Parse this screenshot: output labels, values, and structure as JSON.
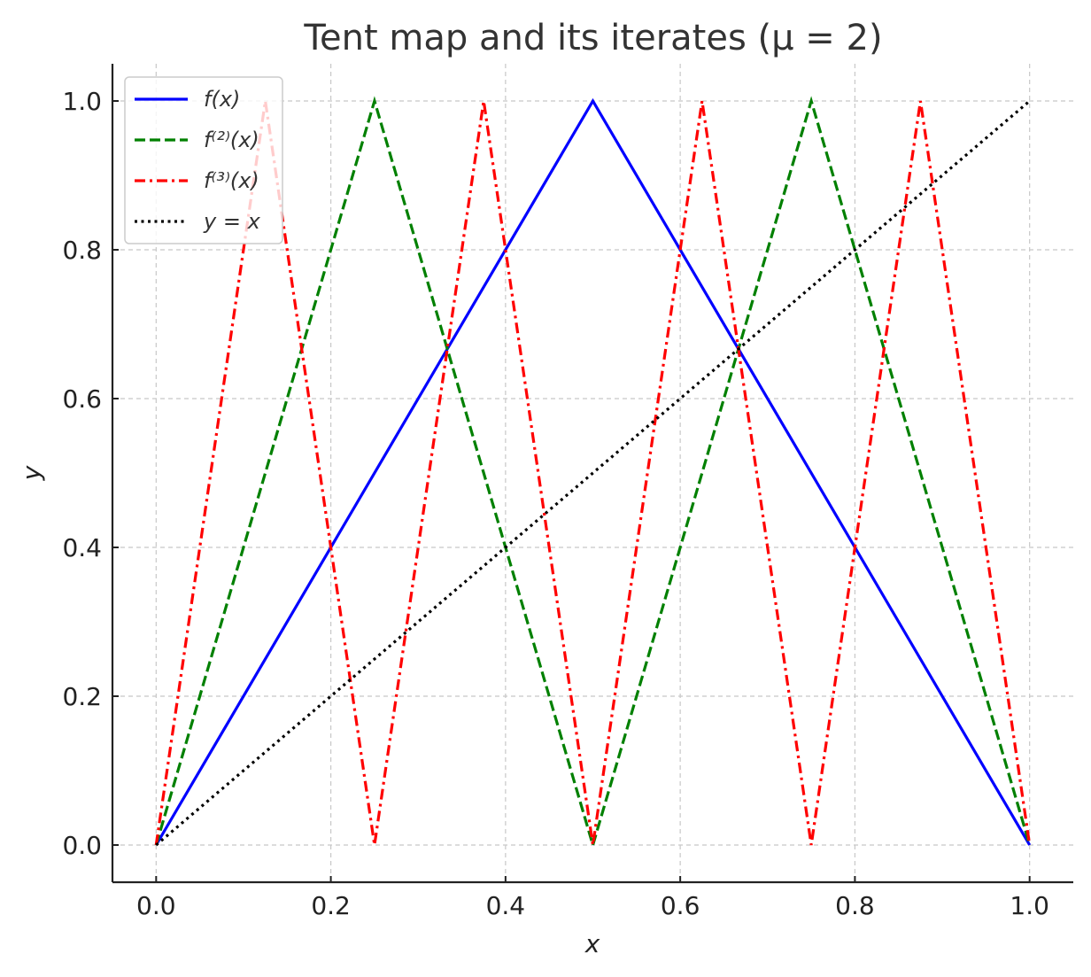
{
  "chart_data": {
    "type": "line",
    "title": "Tent map and its iterates (μ = 2)",
    "xlabel": "x",
    "ylabel": "y",
    "xlim": [
      -0.05,
      1.05
    ],
    "ylim": [
      -0.05,
      1.05
    ],
    "xticks": [
      "0.0",
      "0.2",
      "0.4",
      "0.6",
      "0.8",
      "1.0"
    ],
    "yticks": [
      "0.0",
      "0.2",
      "0.4",
      "0.6",
      "0.8",
      "1.0"
    ],
    "xtick_values": [
      0.0,
      0.2,
      0.4,
      0.6,
      0.8,
      1.0
    ],
    "ytick_values": [
      0.0,
      0.2,
      0.4,
      0.6,
      0.8,
      1.0
    ],
    "grid": true,
    "legend_position": "top-left",
    "series": [
      {
        "name": "f(x)",
        "color": "#0000ff",
        "style": "solid",
        "x": [
          0.0,
          0.5,
          1.0
        ],
        "y": [
          0.0,
          1.0,
          0.0
        ]
      },
      {
        "name": "f⁽²⁾(x)",
        "color": "#008000",
        "style": "dashed",
        "x": [
          0.0,
          0.25,
          0.5,
          0.75,
          1.0
        ],
        "y": [
          0.0,
          1.0,
          0.0,
          1.0,
          0.0
        ]
      },
      {
        "name": "f⁽³⁾(x)",
        "color": "#ff0000",
        "style": "dashdot",
        "x": [
          0.0,
          0.125,
          0.25,
          0.375,
          0.5,
          0.625,
          0.75,
          0.875,
          1.0
        ],
        "y": [
          0.0,
          1.0,
          0.0,
          1.0,
          0.0,
          1.0,
          0.0,
          1.0,
          0.0
        ]
      },
      {
        "name": "y = x",
        "color": "#000000",
        "style": "dotted",
        "x": [
          0.0,
          1.0
        ],
        "y": [
          0.0,
          1.0
        ]
      }
    ]
  }
}
